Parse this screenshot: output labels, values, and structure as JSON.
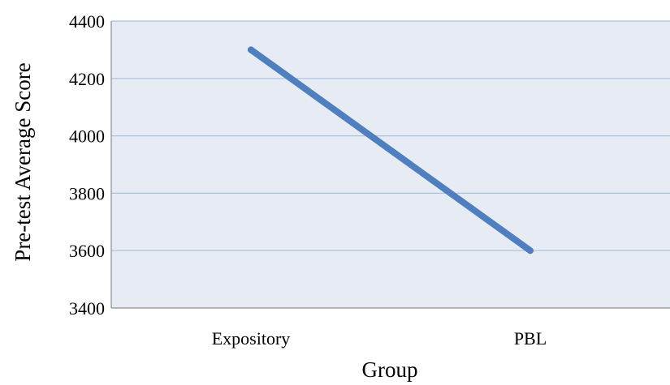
{
  "chart_data": {
    "type": "line",
    "categories": [
      "Expository",
      "PBL"
    ],
    "series": [
      {
        "values": [
          4300,
          3600
        ]
      }
    ],
    "xlabel": "Group",
    "ylabel": "Pre-test Average Score",
    "ylim": [
      3400,
      4400
    ],
    "yticks": [
      "3400",
      "3600",
      "3800",
      "4000",
      "4200",
      "4400"
    ],
    "grid": true,
    "legend": "none",
    "colors": {
      "plot_background": "#e7ecf4",
      "gridline": "#a9c2e0",
      "line": "#4f7fbf",
      "axis": "#8c8c8c"
    }
  }
}
